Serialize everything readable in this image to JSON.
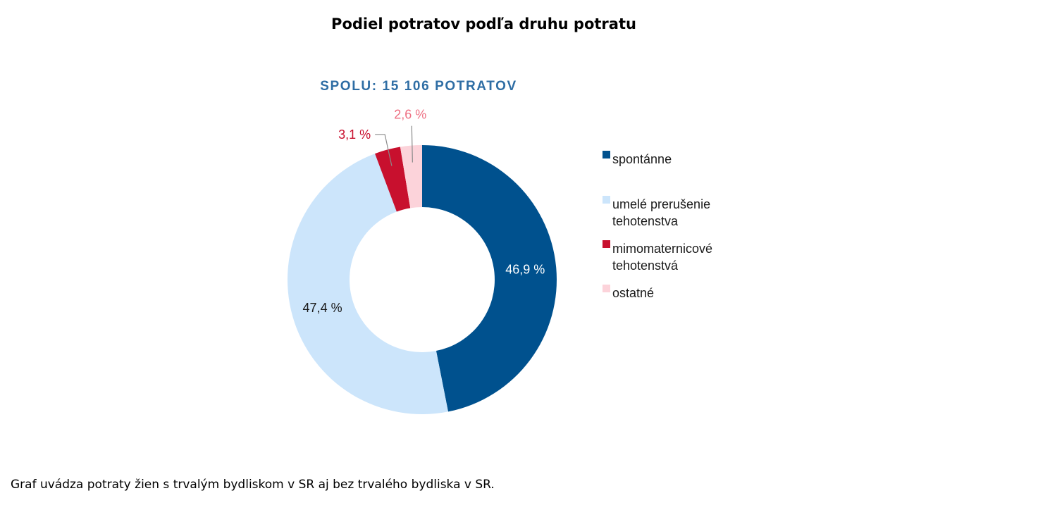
{
  "page": {
    "title": "Podiel potratov podľa druhu potratu",
    "footnote": "Graf uvádza potraty žien s trvalým bydliskom v SR aj bez trvalého bydliska v SR."
  },
  "chart_data": {
    "type": "pie",
    "variant": "donut",
    "title": "Podiel potratov podľa druhu potratu",
    "subtitle": "SPOLU: 15 106 POTRATOV",
    "legend_position": "right",
    "slices": [
      {
        "label": "spontánne",
        "legend_lines": [
          "spontánne"
        ],
        "value": 46.9,
        "value_label": "46,9 %",
        "color": "#00518e",
        "label_color": "#ffffff"
      },
      {
        "label": "umelé prerušenie tehotenstva",
        "legend_lines": [
          "umelé prerušenie",
          "tehotenstva"
        ],
        "value": 47.4,
        "value_label": "47,4 %",
        "color": "#cce5fb",
        "label_color": "#1a1a1a"
      },
      {
        "label": "mimomaternicové tehotenstvá",
        "legend_lines": [
          "mimomaternicové",
          "tehotenstvá"
        ],
        "value": 3.1,
        "value_label": "3,1 %",
        "color": "#c8102e",
        "label_color": "#c8102e"
      },
      {
        "label": "ostatné",
        "legend_lines": [
          "ostatné"
        ],
        "value": 2.6,
        "value_label": "2,6 %",
        "color": "#fcd3da",
        "label_color": "#ee6f82"
      }
    ],
    "colors": {
      "subtitle": "#2e6da4",
      "leader_line": "#8a8a8a"
    }
  }
}
